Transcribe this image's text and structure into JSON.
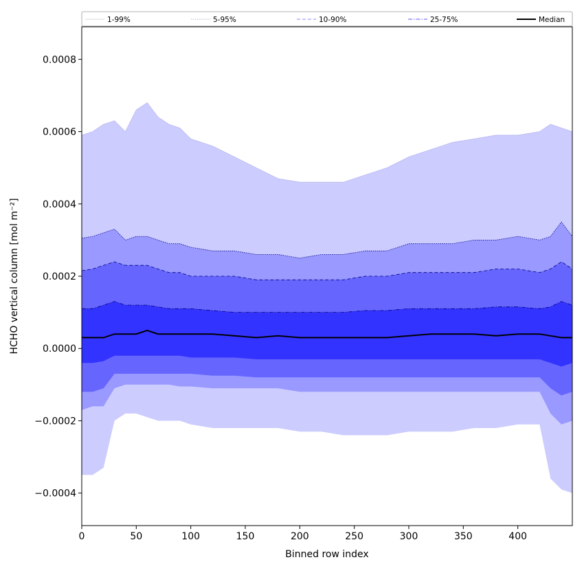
{
  "chart_data": {
    "type": "area",
    "xlabel": "Binned row index",
    "ylabel": "HCHO vertical column [mol m⁻²]",
    "xlim": [
      0,
      450
    ],
    "ylim": [
      -0.00049,
      0.00089
    ],
    "xticks": [
      0,
      50,
      100,
      150,
      200,
      250,
      300,
      350,
      400
    ],
    "yticks": [
      -0.0004,
      -0.0002,
      0.0,
      0.0002,
      0.0004,
      0.0006,
      0.0008
    ],
    "ytick_labels": [
      "−0.0004",
      "−0.0002",
      "0.0000",
      "0.0002",
      "0.0004",
      "0.0006",
      "0.0008"
    ],
    "grid": false,
    "legend_position": "top, above plot",
    "x": [
      0,
      10,
      20,
      30,
      40,
      50,
      60,
      70,
      80,
      90,
      100,
      120,
      140,
      160,
      180,
      200,
      220,
      240,
      260,
      280,
      300,
      320,
      340,
      360,
      380,
      400,
      420,
      430,
      440,
      450
    ],
    "series": [
      {
        "name": "1-99%",
        "style": "thin solid",
        "color": "#ccccff",
        "upper": [
          0.00059,
          0.0006,
          0.00062,
          0.00063,
          0.0006,
          0.00066,
          0.00068,
          0.00064,
          0.00062,
          0.00061,
          0.00058,
          0.00056,
          0.00053,
          0.0005,
          0.00047,
          0.00046,
          0.00046,
          0.00046,
          0.00048,
          0.0005,
          0.00053,
          0.00055,
          0.00057,
          0.00058,
          0.00059,
          0.00059,
          0.0006,
          0.00062,
          0.00061,
          0.0006
        ],
        "lower": [
          -0.00035,
          -0.00035,
          -0.00033,
          -0.0002,
          -0.00018,
          -0.00018,
          -0.00019,
          -0.0002,
          -0.0002,
          -0.0002,
          -0.00021,
          -0.00022,
          -0.00022,
          -0.00022,
          -0.00022,
          -0.00023,
          -0.00023,
          -0.00024,
          -0.00024,
          -0.00024,
          -0.00023,
          -0.00023,
          -0.00023,
          -0.00022,
          -0.00022,
          -0.00021,
          -0.00021,
          -0.00036,
          -0.00039,
          -0.0004
        ]
      },
      {
        "name": "5-95%",
        "style": "dotted",
        "color": "#9999ff",
        "upper": [
          0.000305,
          0.00031,
          0.00032,
          0.00033,
          0.0003,
          0.00031,
          0.00031,
          0.0003,
          0.00029,
          0.00029,
          0.00028,
          0.00027,
          0.00027,
          0.00026,
          0.00026,
          0.00025,
          0.00026,
          0.00026,
          0.00027,
          0.00027,
          0.00029,
          0.00029,
          0.00029,
          0.0003,
          0.0003,
          0.00031,
          0.0003,
          0.00031,
          0.00035,
          0.00031
        ],
        "lower": [
          -0.00017,
          -0.00016,
          -0.00016,
          -0.00011,
          -0.0001,
          -0.0001,
          -0.0001,
          -0.0001,
          -0.0001,
          -0.000105,
          -0.000105,
          -0.00011,
          -0.00011,
          -0.00011,
          -0.00011,
          -0.00012,
          -0.00012,
          -0.00012,
          -0.00012,
          -0.00012,
          -0.00012,
          -0.00012,
          -0.00012,
          -0.00012,
          -0.00012,
          -0.00012,
          -0.00012,
          -0.00018,
          -0.00021,
          -0.0002
        ]
      },
      {
        "name": "10-90%",
        "style": "dashed",
        "color": "#6666ff",
        "upper": [
          0.000215,
          0.00022,
          0.00023,
          0.00024,
          0.00023,
          0.00023,
          0.00023,
          0.00022,
          0.00021,
          0.00021,
          0.0002,
          0.0002,
          0.0002,
          0.00019,
          0.00019,
          0.00019,
          0.00019,
          0.00019,
          0.0002,
          0.0002,
          0.00021,
          0.00021,
          0.00021,
          0.00021,
          0.00022,
          0.00022,
          0.00021,
          0.00022,
          0.00024,
          0.00022
        ],
        "lower": [
          -0.00012,
          -0.00012,
          -0.00011,
          -7e-05,
          -7e-05,
          -7e-05,
          -7e-05,
          -7e-05,
          -7e-05,
          -7e-05,
          -7e-05,
          -7.5e-05,
          -7.5e-05,
          -8e-05,
          -8e-05,
          -8e-05,
          -8e-05,
          -8e-05,
          -8e-05,
          -8e-05,
          -8e-05,
          -8e-05,
          -8e-05,
          -8e-05,
          -8e-05,
          -8e-05,
          -8e-05,
          -0.00011,
          -0.00013,
          -0.00012
        ]
      },
      {
        "name": "25-75%",
        "style": "dash-dot",
        "color": "#3333ff",
        "upper": [
          0.00011,
          0.00011,
          0.00012,
          0.00013,
          0.00012,
          0.00012,
          0.00012,
          0.000115,
          0.00011,
          0.00011,
          0.00011,
          0.000105,
          0.0001,
          0.0001,
          0.0001,
          0.0001,
          0.0001,
          0.0001,
          0.000105,
          0.000105,
          0.00011,
          0.00011,
          0.00011,
          0.00011,
          0.000115,
          0.000115,
          0.00011,
          0.000115,
          0.00013,
          0.00012
        ],
        "lower": [
          -4e-05,
          -4e-05,
          -3.5e-05,
          -2e-05,
          -2e-05,
          -2e-05,
          -2e-05,
          -2e-05,
          -2e-05,
          -2e-05,
          -2.5e-05,
          -2.5e-05,
          -2.5e-05,
          -3e-05,
          -3e-05,
          -3e-05,
          -3e-05,
          -3e-05,
          -3e-05,
          -3e-05,
          -3e-05,
          -3e-05,
          -3e-05,
          -3e-05,
          -3e-05,
          -3e-05,
          -3e-05,
          -4e-05,
          -5e-05,
          -4e-05
        ]
      },
      {
        "name": "Median",
        "style": "solid thick",
        "color": "#000000",
        "values": [
          3e-05,
          3e-05,
          3e-05,
          4e-05,
          4e-05,
          4e-05,
          5e-05,
          4e-05,
          4e-05,
          4e-05,
          4e-05,
          4e-05,
          3.5e-05,
          3e-05,
          3.5e-05,
          3e-05,
          3e-05,
          3e-05,
          3e-05,
          3e-05,
          3.5e-05,
          4e-05,
          4e-05,
          4e-05,
          3.5e-05,
          4e-05,
          4e-05,
          3.5e-05,
          3e-05,
          3e-05
        ]
      }
    ]
  },
  "legend": {
    "entries": [
      "1-99%",
      "5-95%",
      "10-90%",
      "25-75%",
      "Median"
    ]
  }
}
